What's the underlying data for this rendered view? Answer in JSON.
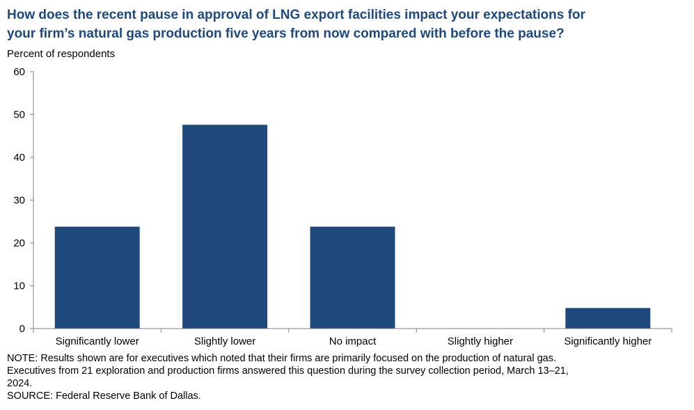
{
  "title_lines": [
    "How does the recent pause in approval of LNG export facilities impact your expectations for",
    "your firm’s natural gas production five years from now compared with before the pause?"
  ],
  "chart_data": {
    "type": "bar",
    "title": "How does the recent pause in approval of LNG export facilities impact your expectations for your firm’s natural gas production five years from now compared with before the pause?",
    "ylabel": "Percent of respondents",
    "categories": [
      "Significantly lower",
      "Slightly lower",
      "No impact",
      "Slightly higher",
      "Significantly higher"
    ],
    "values": [
      23.8,
      47.6,
      23.8,
      0.0,
      4.8
    ],
    "ylim": [
      0,
      60
    ],
    "yticks": [
      0,
      10,
      20,
      30,
      40,
      50,
      60
    ],
    "grid": false,
    "bar_color": "#1f497d"
  },
  "notes": [
    "NOTE:  Results shown are for executives  which noted that their firms are primarily focused on the production of natural gas.",
    "Executives  from 21 exploration  and production firms answered  this question  during the survey collection period, March 13–21,",
    "2024.",
    "SOURCE:  Federal Reserve  Bank of Dallas."
  ]
}
